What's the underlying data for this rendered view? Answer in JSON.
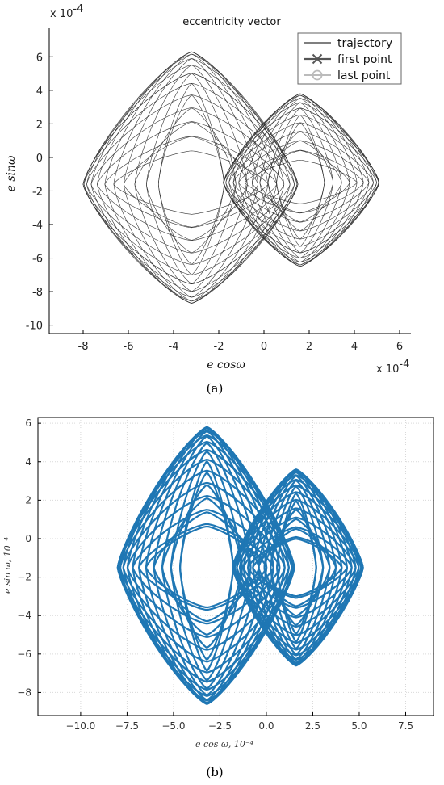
{
  "chart_data": [
    {
      "type": "line",
      "panel_caption": "(a)",
      "title": "eccentricity vector",
      "xlabel": "e cosω",
      "ylabel": "e sinω",
      "x_scale_label": "x 10",
      "x_scale_exp": "-4",
      "y_scale_label": "x 10",
      "y_scale_exp": "-4",
      "xlim": [
        -9.5,
        6.5
      ],
      "ylim": [
        -10.5,
        7.7
      ],
      "xticks": [
        -8,
        -6,
        -4,
        -2,
        0,
        2,
        4,
        6
      ],
      "yticks": [
        6,
        4,
        2,
        0,
        -2,
        -4,
        -6,
        -8,
        -10
      ],
      "grid": false,
      "legend_position": "top-right",
      "legend": [
        "trajectory",
        "first point",
        "last point"
      ],
      "colors": {
        "trajectory": "#333333",
        "first_point": "#555555",
        "last_point": "#bbbbbb"
      },
      "series": [
        {
          "name": "trajectory",
          "lobe": "left",
          "center": [
            -3.2,
            -1.6
          ],
          "x_extent": [
            -8.0,
            1.5
          ],
          "y_extent": [
            -8.7,
            6.3
          ]
        },
        {
          "name": "trajectory",
          "lobe": "right",
          "center": [
            1.6,
            -1.5
          ],
          "x_extent": [
            -1.8,
            5.1
          ],
          "y_extent": [
            -6.5,
            3.8
          ]
        }
      ]
    },
    {
      "type": "line",
      "panel_caption": "(b)",
      "xlabel": "e cos ω, 10⁻⁴",
      "ylabel": "e sin ω, 10⁻⁴",
      "xlim": [
        -12.3,
        9.0
      ],
      "ylim": [
        -9.2,
        6.3
      ],
      "xticks": [
        -10.0,
        -7.5,
        -5.0,
        -2.5,
        0.0,
        2.5,
        5.0,
        7.5
      ],
      "xtick_labels": [
        "−10.0",
        "−7.5",
        "−5.0",
        "−2.5",
        "0.0",
        "2.5",
        "5.0",
        "7.5"
      ],
      "yticks": [
        6,
        4,
        2,
        0,
        -2,
        -4,
        -6,
        -8
      ],
      "ytick_labels": [
        "6",
        "4",
        "2",
        "0",
        "−2",
        "−4",
        "−6",
        "−8"
      ],
      "grid": true,
      "colors": {
        "line": "#1f77b4"
      },
      "series": [
        {
          "lobe": "left",
          "center": [
            -3.2,
            -1.5
          ],
          "x_extent": [
            -8.0,
            1.5
          ],
          "y_extent": [
            -8.6,
            5.8
          ]
        },
        {
          "lobe": "right",
          "center": [
            1.6,
            -1.5
          ],
          "x_extent": [
            -1.8,
            5.2
          ],
          "y_extent": [
            -6.6,
            3.6
          ]
        }
      ]
    }
  ]
}
